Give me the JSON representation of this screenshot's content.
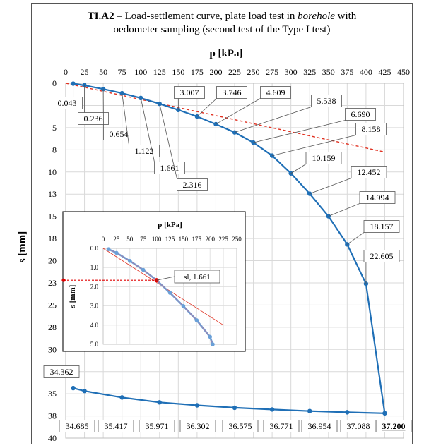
{
  "title": {
    "code": "TI.A2",
    "dash": " – Load-settlement curve, plate load test in ",
    "italic": "borehole",
    "after": " with",
    "line2": "oedometer sampling (second test of the Type I test)"
  },
  "chart_data": [
    {
      "type": "line",
      "xlabel": "p [kPa]",
      "ylabel": "s [mm]",
      "x_ticks": [
        0,
        25,
        50,
        75,
        100,
        125,
        150,
        175,
        200,
        225,
        250,
        275,
        300,
        325,
        350,
        375,
        400,
        425,
        450
      ],
      "y_ticks": [
        "0",
        "3",
        "5",
        "8",
        "10",
        "13",
        "15",
        "18",
        "20",
        "23",
        "25",
        "28",
        "30",
        "33",
        "35",
        "38",
        "40"
      ],
      "xlim": [
        0,
        450
      ],
      "ylim": [
        0,
        40
      ],
      "y_inverted": true,
      "x_axis_position": "top",
      "grid": true,
      "colors": {
        "series": "#1f6fb6",
        "trend": "#e03020"
      },
      "series": [
        {
          "role": "loading",
          "points": [
            {
              "x": 10,
              "y": 0.043,
              "label": "0.043"
            },
            {
              "x": 25,
              "y": 0.236,
              "label": "0.236"
            },
            {
              "x": 50,
              "y": 0.654,
              "label": "0.654"
            },
            {
              "x": 75,
              "y": 1.122,
              "label": "1.122"
            },
            {
              "x": 100,
              "y": 1.661,
              "label": "1.661"
            },
            {
              "x": 125,
              "y": 2.316,
              "label": "2.316"
            },
            {
              "x": 150,
              "y": 3.007,
              "label": "3.007"
            },
            {
              "x": 175,
              "y": 3.746,
              "label": "3.746"
            },
            {
              "x": 200,
              "y": 4.609,
              "label": "4.609"
            },
            {
              "x": 225,
              "y": 5.538,
              "label": "5.538"
            },
            {
              "x": 250,
              "y": 6.69,
              "label": "6.690"
            },
            {
              "x": 275,
              "y": 8.158,
              "label": "8.158"
            },
            {
              "x": 300,
              "y": 10.159,
              "label": "10.159"
            },
            {
              "x": 325,
              "y": 12.452,
              "label": "12.452"
            },
            {
              "x": 350,
              "y": 14.994,
              "label": "14.994"
            },
            {
              "x": 375,
              "y": 18.157,
              "label": "18.157"
            },
            {
              "x": 400,
              "y": 22.605,
              "label": "22.605"
            },
            {
              "x": 425,
              "y": 37.2,
              "label": "37.200"
            }
          ]
        },
        {
          "role": "unloading",
          "points": [
            {
              "x": 425,
              "y": 37.2
            },
            {
              "x": 375,
              "y": 37.088,
              "label": "37.088"
            },
            {
              "x": 325,
              "y": 36.954,
              "label": "36.954"
            },
            {
              "x": 275,
              "y": 36.771,
              "label": "36.771"
            },
            {
              "x": 225,
              "y": 36.575,
              "label": "36.575"
            },
            {
              "x": 175,
              "y": 36.302,
              "label": "36.302"
            },
            {
              "x": 125,
              "y": 35.971,
              "label": "35.971"
            },
            {
              "x": 75,
              "y": 35.417,
              "label": "35.417"
            },
            {
              "x": 25,
              "y": 34.685,
              "label": "34.685"
            },
            {
              "x": 10,
              "y": 34.362,
              "label": "34.362"
            }
          ]
        },
        {
          "role": "linear-trend",
          "line_style": "dashed",
          "points": [
            {
              "x": 0,
              "y": 0
            },
            {
              "x": 425,
              "y": 7.75
            }
          ]
        }
      ]
    },
    {
      "type": "line",
      "role": "inset",
      "xlabel": "p [kPa]",
      "ylabel": "s [mm]",
      "x_ticks": [
        0,
        25,
        50,
        75,
        100,
        125,
        150,
        175,
        200,
        225,
        250
      ],
      "y_ticks": [
        "0.0",
        "1.0",
        "2.0",
        "3.0",
        "4.0",
        "5.0"
      ],
      "xlim": [
        0,
        250
      ],
      "ylim": [
        0,
        5
      ],
      "y_inverted": true,
      "annotation": "sl, 1.661",
      "marker": {
        "x": 0,
        "y": 1.661
      },
      "series": [
        {
          "role": "loading",
          "points": [
            {
              "x": 10,
              "y": 0.043
            },
            {
              "x": 25,
              "y": 0.236
            },
            {
              "x": 50,
              "y": 0.654
            },
            {
              "x": 75,
              "y": 1.122
            },
            {
              "x": 100,
              "y": 1.661
            },
            {
              "x": 125,
              "y": 2.316
            },
            {
              "x": 150,
              "y": 3.007
            },
            {
              "x": 175,
              "y": 3.746
            },
            {
              "x": 200,
              "y": 4.609
            },
            {
              "x": 205,
              "y": 5.0
            }
          ]
        },
        {
          "role": "linear-trend",
          "points": [
            {
              "x": 0,
              "y": 0
            },
            {
              "x": 225,
              "y": 4.0
            }
          ]
        }
      ]
    }
  ]
}
